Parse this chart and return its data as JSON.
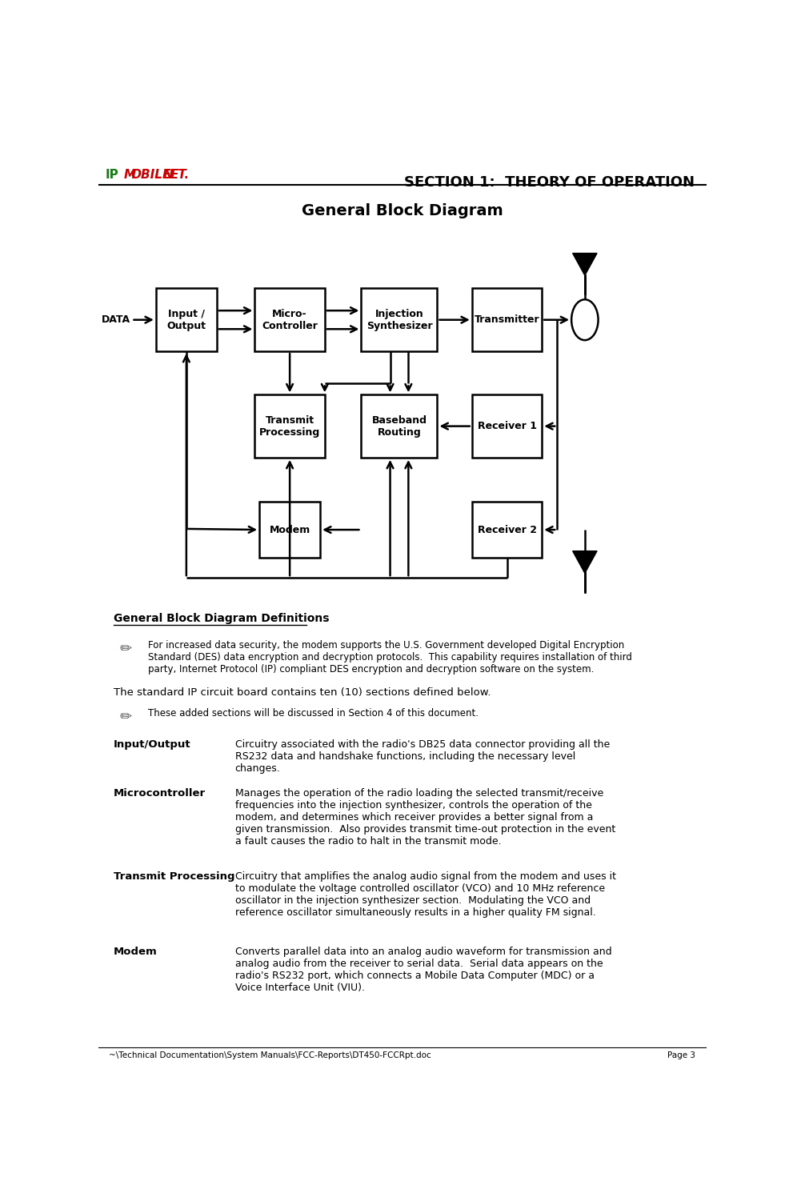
{
  "title_section": "SECTION 1:  THEORY OF OPERATION",
  "diagram_title": "General Block Diagram",
  "bg_color": "#ffffff",
  "definitions_heading": "General Block Diagram Definitions",
  "note1": "For increased data security, the modem supports the U.S. Government developed Digital Encryption\nStandard (DES) data encryption and decryption protocols.  This capability requires installation of third\nparty, Internet Protocol (IP) compliant DES encryption and decryption software on the system.",
  "note2": "These added sections will be discussed in Section 4 of this document.",
  "standard_text": "The standard IP circuit board contains ten (10) sections defined below.",
  "definitions": [
    {
      "term": "Input/Output",
      "desc": "Circuitry associated with the radio's DB25 data connector providing all the\nRS232 data and handshake functions, including the necessary level\nchanges."
    },
    {
      "term": "Microcontroller",
      "desc": "Manages the operation of the radio loading the selected transmit/receive\nfrequencies into the injection synthesizer, controls the operation of the\nmodem, and determines which receiver provides a better signal from a\ngiven transmission.  Also provides transmit time-out protection in the event\na fault causes the radio to halt in the transmit mode."
    },
    {
      "term": "Transmit Processing",
      "desc": "Circuitry that amplifies the analog audio signal from the modem and uses it\nto modulate the voltage controlled oscillator (VCO) and 10 MHz reference\noscillator in the injection synthesizer section.  Modulating the VCO and\nreference oscillator simultaneously results in a higher quality FM signal."
    },
    {
      "term": "Modem",
      "desc": "Converts parallel data into an analog audio waveform for transmission and\nanalog audio from the receiver to serial data.  Serial data appears on the\nradio's RS232 port, which connects a Mobile Data Computer (MDC) or a\nVoice Interface Unit (VIU)."
    }
  ],
  "footer_left": "~\\Technical Documentation\\System Manuals\\FCC-Reports\\DT450-FCCRpt.doc",
  "footer_right": "Page 3"
}
